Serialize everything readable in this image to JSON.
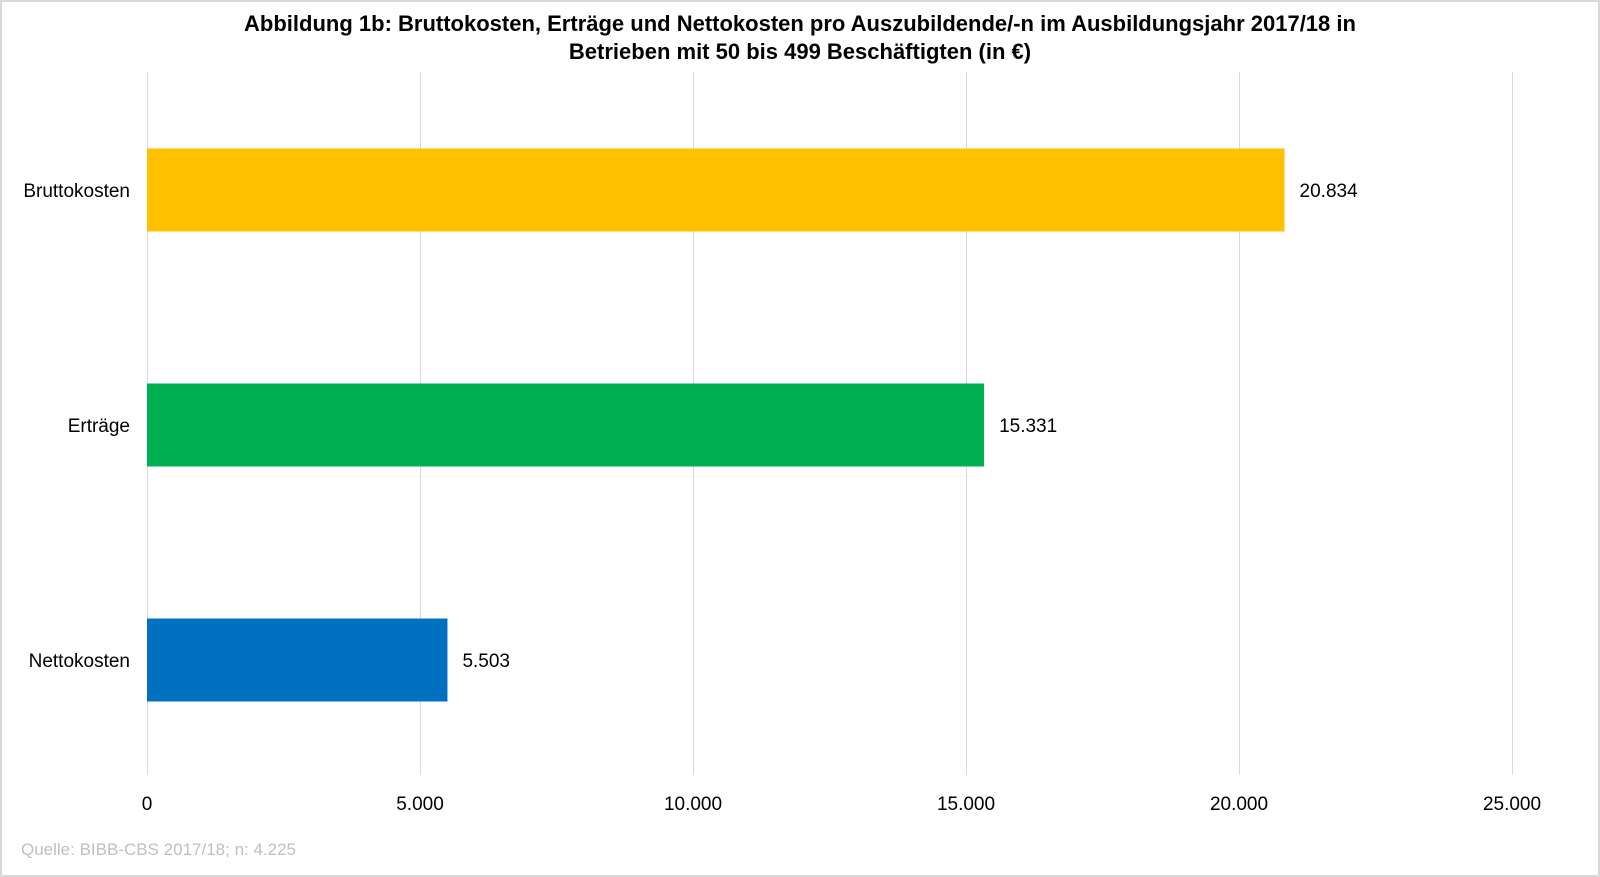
{
  "chart_data": {
    "type": "bar",
    "orientation": "horizontal",
    "title": "Abbildung 1b: Bruttokosten, Erträge und Nettokosten pro Auszubildende/-n im Ausbildungsjahr 2017/18 in Betrieben mit 50 bis 499 Beschäftigten (in €)",
    "title_lines": [
      "Abbildung 1b: Bruttokosten, Erträge und Nettokosten pro Auszubildende/-n im Ausbildungsjahr 2017/18 in",
      "Betrieben mit 50 bis 499 Beschäftigten (in €)"
    ],
    "categories": [
      "Bruttokosten",
      "Erträge",
      "Nettokosten"
    ],
    "values": [
      20834,
      15331,
      5503
    ],
    "data_labels": [
      "20.834",
      "15.331",
      "5.503"
    ],
    "colors": [
      "#FFC000",
      "#00B050",
      "#0070C0"
    ],
    "xlabel": "",
    "ylabel": "",
    "xlim": [
      0,
      25000
    ],
    "x_ticks": [
      0,
      5000,
      10000,
      15000,
      20000,
      25000
    ],
    "x_tick_labels": [
      "0",
      "5.000",
      "10.000",
      "15.000",
      "20.000",
      "25.000"
    ],
    "grid": true,
    "gridline_color": "#d9d9d9",
    "legend": "none",
    "source": "Quelle: BIBB-CBS 2017/18; n: 4.225"
  }
}
